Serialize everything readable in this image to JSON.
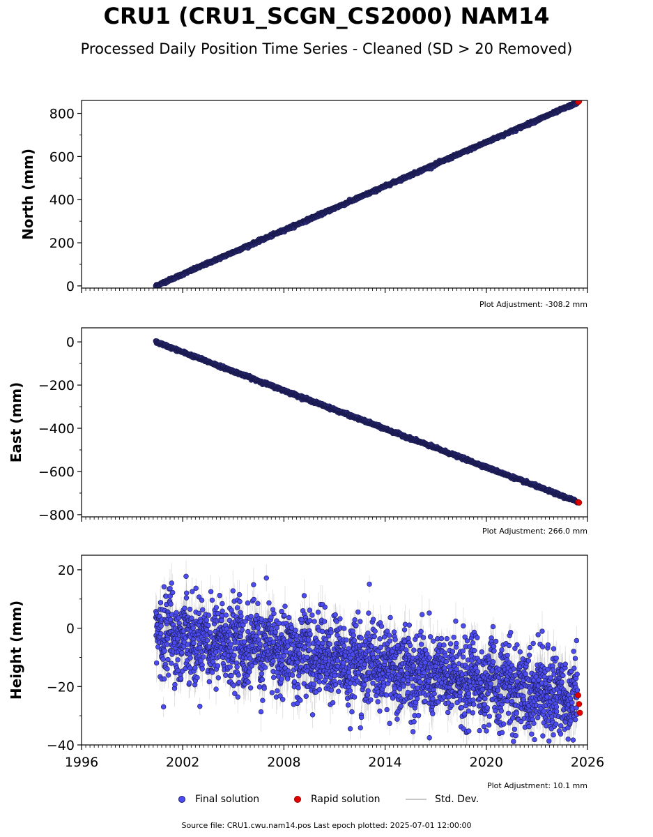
{
  "header": {
    "title": "CRU1 (CRU1_SCGN_CS2000) NAM14",
    "subtitle": "Processed Daily Position Time Series - Cleaned (SD > 20 Removed)"
  },
  "colors": {
    "final": "#4c4cf0",
    "final_edge": "#1a1a4e",
    "rapid": "#e00000",
    "stddev": "#9a9a9a"
  },
  "chart_data": [
    {
      "type": "scatter",
      "panel": "north",
      "ylabel": "North (mm)",
      "xlim": [
        1996,
        2026
      ],
      "ylim": [
        -10,
        860
      ],
      "yticks": [
        0,
        200,
        400,
        600,
        800
      ],
      "xticks": [
        1996,
        2002,
        2008,
        2014,
        2020,
        2026
      ],
      "show_xtick_labels": false,
      "adjustment": "Plot Adjustment: -308.2 mm",
      "series": [
        {
          "name": "Final solution",
          "trend": {
            "x": [
              2000.4,
              2025.4
            ],
            "y": [
              0,
              850
            ]
          },
          "scatter": 3
        },
        {
          "name": "Rapid solution",
          "x": [
            2025.45,
            2025.5
          ],
          "y": [
            853,
            856
          ]
        }
      ]
    },
    {
      "type": "scatter",
      "panel": "east",
      "ylabel": "East (mm)",
      "xlim": [
        1996,
        2026
      ],
      "ylim": [
        -810,
        65
      ],
      "yticks": [
        0,
        -200,
        -400,
        -600,
        -800
      ],
      "xticks": [
        1996,
        2002,
        2008,
        2014,
        2020,
        2026
      ],
      "show_xtick_labels": false,
      "adjustment": "Plot Adjustment: 266.0 mm",
      "series": [
        {
          "name": "Final solution",
          "trend": {
            "x": [
              2000.4,
              2025.4
            ],
            "y": [
              0,
              -740
            ]
          },
          "scatter": 3
        },
        {
          "name": "Rapid solution",
          "x": [
            2025.45,
            2025.5
          ],
          "y": [
            -742,
            -744
          ]
        }
      ]
    },
    {
      "type": "scatter",
      "panel": "height",
      "ylabel": "Height (mm)",
      "xlim": [
        1996,
        2026
      ],
      "ylim": [
        -40,
        25
      ],
      "yticks": [
        20,
        0,
        -20,
        -40
      ],
      "xticks": [
        1996,
        2002,
        2008,
        2014,
        2020,
        2026
      ],
      "xticklabels": [
        "1996",
        "2002",
        "2008",
        "2014",
        "2020",
        "2026"
      ],
      "show_xtick_labels": true,
      "adjustment": "Plot Adjustment: 10.1 mm",
      "series": [
        {
          "name": "Final solution",
          "trend": {
            "x": [
              2000.4,
              2025.4
            ],
            "y": [
              -1,
              -24
            ]
          },
          "scatter": 7
        },
        {
          "name": "Rapid solution",
          "x": [
            2025.45,
            2025.5,
            2025.55
          ],
          "y": [
            -23,
            -26,
            -29
          ]
        }
      ]
    }
  ],
  "legend": {
    "final": "Final solution",
    "rapid": "Rapid solution",
    "stddev": "Std. Dev."
  },
  "footer": {
    "source": "Source file: CRU1.cwu.nam14.pos  Last epoch plotted: 2025-07-01 12:00:00"
  }
}
